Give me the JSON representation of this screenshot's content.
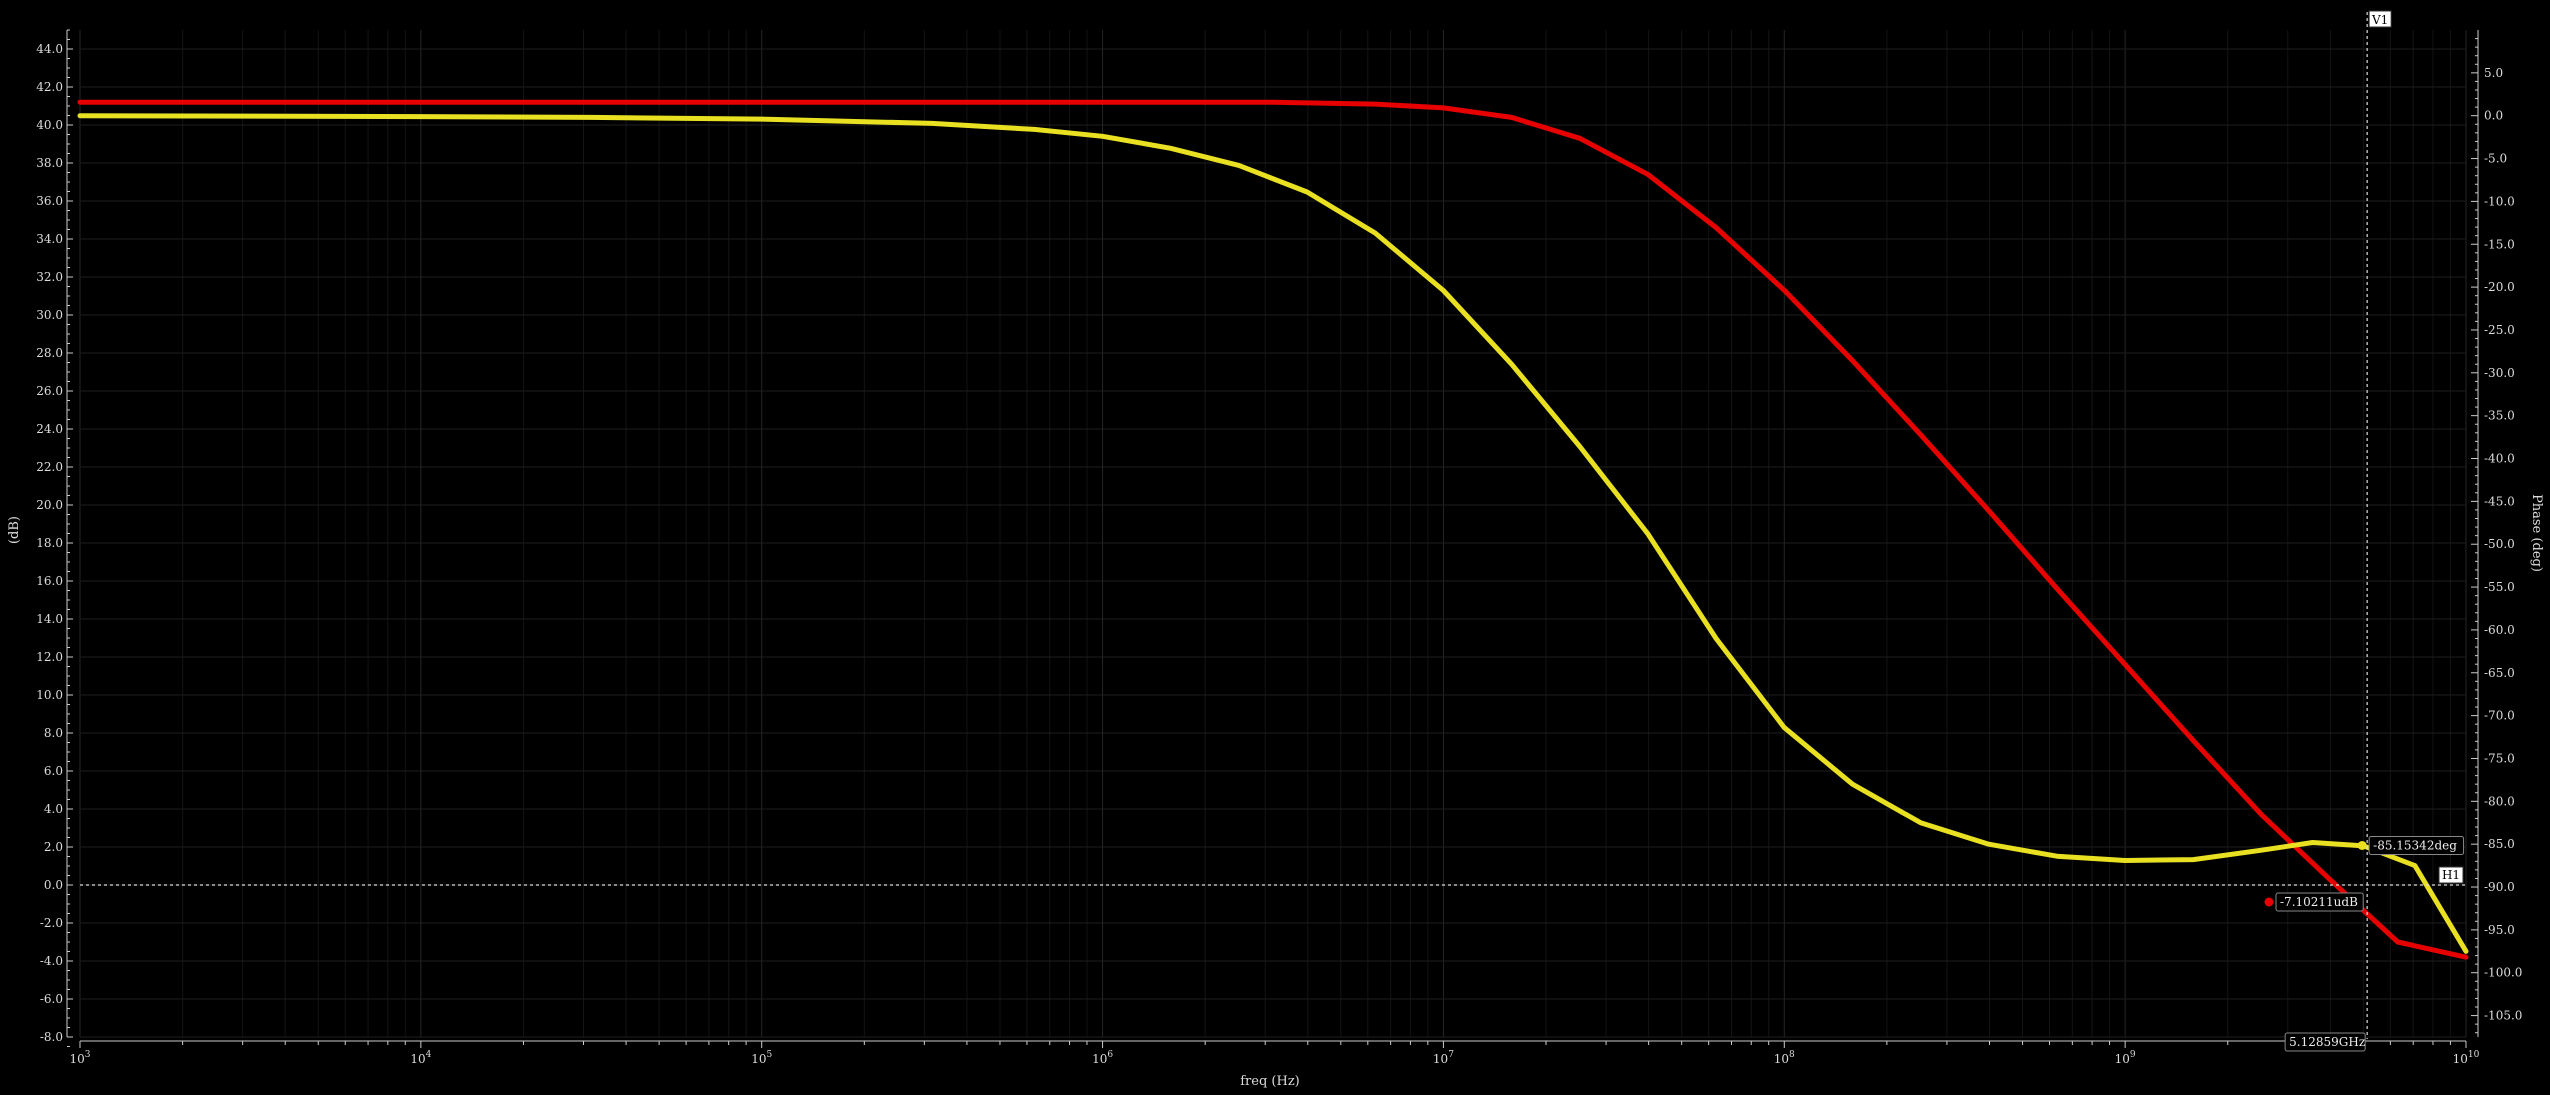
{
  "chart_data": {
    "type": "line",
    "xlabel": "freq (Hz)",
    "ylabel_left": "(dB)",
    "ylabel_right": "Phase (deg)",
    "x_scale": "log",
    "x_exponent_range": [
      3,
      10
    ],
    "x_tick_exponents": [
      3,
      4,
      5,
      6,
      7,
      8,
      9,
      10
    ],
    "ylim_left": [
      -8.0,
      45.0
    ],
    "ylim_right": [
      -107.5,
      10.0
    ],
    "left_ticks": [
      -8.0,
      -6.0,
      -4.0,
      -2.0,
      0.0,
      2.0,
      4.0,
      6.0,
      8.0,
      10.0,
      12.0,
      14.0,
      16.0,
      18.0,
      20.0,
      22.0,
      24.0,
      26.0,
      28.0,
      30.0,
      32.0,
      34.0,
      36.0,
      38.0,
      40.0,
      42.0,
      44.0
    ],
    "right_ticks": [
      5.0,
      0.0,
      -5.0,
      -10.0,
      -15.0,
      -20.0,
      -25.0,
      -30.0,
      -35.0,
      -40.0,
      -45.0,
      -50.0,
      -55.0,
      -60.0,
      -65.0,
      -70.0,
      -75.0,
      -80.0,
      -85.0,
      -90.0,
      -95.0,
      -100.0,
      -105.0
    ],
    "grid": true,
    "colors": {
      "background": "#000000",
      "magnitude": "#e60000",
      "phase": "#e8e020",
      "text": "#dddddd"
    },
    "series": [
      {
        "axis": "left",
        "log10_freq": [
          3,
          4,
          5,
          5.5,
          6,
          6.5,
          6.8,
          7,
          7.2,
          7.4,
          7.6,
          7.8,
          8,
          8.2,
          8.4,
          8.6,
          8.8,
          9,
          9.2,
          9.4,
          9.6,
          9.8,
          10
        ],
        "values": [
          41.2,
          41.2,
          41.2,
          41.2,
          41.2,
          41.2,
          41.1,
          40.9,
          40.4,
          39.3,
          37.4,
          34.6,
          31.3,
          27.6,
          23.7,
          19.7,
          15.6,
          11.6,
          7.6,
          3.7,
          0.3,
          -3.0,
          -3.8
        ]
      },
      {
        "axis": "right",
        "log10_freq": [
          3,
          4,
          4.5,
          5,
          5.5,
          5.8,
          6,
          6.2,
          6.4,
          6.6,
          6.8,
          7,
          7.2,
          7.4,
          7.6,
          7.8,
          8,
          8.2,
          8.4,
          8.6,
          8.8,
          9,
          9.2,
          9.4,
          9.55,
          9.7,
          9.85,
          10
        ],
        "values": [
          0.0,
          -0.1,
          -0.2,
          -0.4,
          -0.9,
          -1.6,
          -2.4,
          -3.8,
          -5.8,
          -8.9,
          -13.7,
          -20.4,
          -29.0,
          -38.6,
          -48.8,
          -61.0,
          -71.4,
          -78.0,
          -82.5,
          -85.0,
          -86.4,
          -86.9,
          -86.8,
          -85.7,
          -84.8,
          -85.2,
          -87.5,
          -97.5
        ]
      }
    ]
  },
  "cursors": {
    "vertical_label": "V1",
    "horizontal_label": "H1",
    "vertical_log10_freq": 9.71,
    "horizontal_db": 0.0,
    "freq_readout": "5.12859GHz",
    "phase_readout": "-85.15342deg",
    "mag_readout": "-7.10211udB",
    "phase_marker_value": -85.15342
  }
}
